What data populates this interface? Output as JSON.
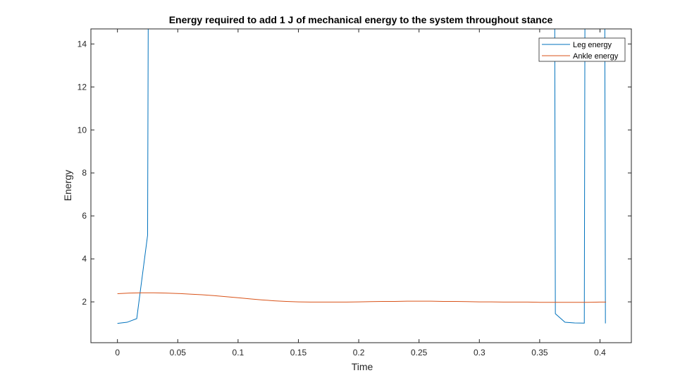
{
  "chart_data": {
    "type": "line",
    "title": "Energy required to add 1 J of mechanical energy to the system throughout stance",
    "xlabel": "Time",
    "ylabel": "Energy",
    "xlim": [
      -0.022,
      0.426
    ],
    "ylim": [
      0.1,
      14.7
    ],
    "xticks": [
      0,
      0.05,
      0.1,
      0.15,
      0.2,
      0.25,
      0.3,
      0.35,
      0.4
    ],
    "xtick_labels": [
      "0",
      "0.05",
      "0.1",
      "0.15",
      "0.2",
      "0.25",
      "0.3",
      "0.35",
      "0.4"
    ],
    "yticks": [
      2,
      4,
      6,
      8,
      10,
      12,
      14
    ],
    "ytick_labels": [
      "2",
      "4",
      "6",
      "8",
      "10",
      "12",
      "14"
    ],
    "grid": false,
    "legend_position": "top-right",
    "series": [
      {
        "name": "Leg energy",
        "color": "#0072BD",
        "segments": [
          [
            [
              0,
              1.0
            ],
            [
              0.008,
              1.05
            ],
            [
              0.016,
              1.22
            ],
            [
              0.025,
              5.1
            ],
            [
              0.0255,
              14.7
            ]
          ],
          [
            [
              0.3625,
              14.7
            ],
            [
              0.363,
              1.45
            ],
            [
              0.371,
              1.05
            ],
            [
              0.379,
              1.02
            ],
            [
              0.387,
              1.01
            ],
            [
              0.3875,
              14.7
            ]
          ],
          [
            [
              0.404,
              14.7
            ],
            [
              0.4045,
              1.0
            ]
          ]
        ]
      },
      {
        "name": "Ankle energy",
        "color": "#D95319",
        "points": [
          [
            0,
            2.38
          ],
          [
            0.01,
            2.41
          ],
          [
            0.02,
            2.42
          ],
          [
            0.03,
            2.42
          ],
          [
            0.04,
            2.41
          ],
          [
            0.05,
            2.39
          ],
          [
            0.06,
            2.36
          ],
          [
            0.07,
            2.33
          ],
          [
            0.08,
            2.29
          ],
          [
            0.09,
            2.24
          ],
          [
            0.1,
            2.19
          ],
          [
            0.11,
            2.14
          ],
          [
            0.12,
            2.09
          ],
          [
            0.13,
            2.05
          ],
          [
            0.14,
            2.02
          ],
          [
            0.15,
            2.0
          ],
          [
            0.16,
            1.99
          ],
          [
            0.17,
            1.99
          ],
          [
            0.18,
            1.99
          ],
          [
            0.19,
            1.99
          ],
          [
            0.2,
            2.0
          ],
          [
            0.21,
            2.01
          ],
          [
            0.22,
            2.02
          ],
          [
            0.23,
            2.02
          ],
          [
            0.24,
            2.03
          ],
          [
            0.25,
            2.03
          ],
          [
            0.26,
            2.03
          ],
          [
            0.27,
            2.02
          ],
          [
            0.28,
            2.02
          ],
          [
            0.29,
            2.01
          ],
          [
            0.3,
            2.0
          ],
          [
            0.31,
            2.0
          ],
          [
            0.32,
            1.99
          ],
          [
            0.33,
            1.99
          ],
          [
            0.34,
            1.99
          ],
          [
            0.35,
            1.98
          ],
          [
            0.36,
            1.98
          ],
          [
            0.37,
            1.98
          ],
          [
            0.38,
            1.98
          ],
          [
            0.39,
            1.98
          ],
          [
            0.4,
            1.99
          ],
          [
            0.405,
            1.99
          ]
        ]
      }
    ]
  }
}
